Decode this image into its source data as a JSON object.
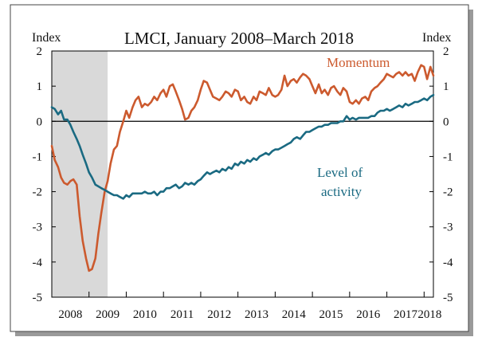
{
  "chart_data": {
    "type": "line",
    "title": "LMCI, January 2008–March 2018",
    "ylabel_left": "Index",
    "ylabel_right": "Index",
    "ylim": [
      -5,
      2
    ],
    "yticks": [
      "2",
      "1",
      "0",
      "-1",
      "-2",
      "-3",
      "-4",
      "-5"
    ],
    "xlim": [
      2008.0,
      2018.25
    ],
    "xticks": [
      "2008",
      "2009",
      "2010",
      "2011",
      "2012",
      "2013",
      "2014",
      "2015",
      "2016",
      "2017",
      "2018"
    ],
    "recession_shading": {
      "from": 2008.0,
      "to": 2009.5
    },
    "zero_line": true,
    "grid": false,
    "series": [
      {
        "name": "Momentum",
        "label_line1": "Momentum",
        "color": "#cc5a2e",
        "points": [
          [
            2008.0,
            -0.7
          ],
          [
            2008.08,
            -1.1
          ],
          [
            2008.17,
            -1.3
          ],
          [
            2008.25,
            -1.6
          ],
          [
            2008.33,
            -1.75
          ],
          [
            2008.42,
            -1.8
          ],
          [
            2008.5,
            -1.7
          ],
          [
            2008.58,
            -1.65
          ],
          [
            2008.67,
            -1.8
          ],
          [
            2008.75,
            -2.7
          ],
          [
            2008.83,
            -3.4
          ],
          [
            2008.92,
            -3.9
          ],
          [
            2009.0,
            -4.25
          ],
          [
            2009.08,
            -4.2
          ],
          [
            2009.17,
            -3.9
          ],
          [
            2009.25,
            -3.2
          ],
          [
            2009.33,
            -2.6
          ],
          [
            2009.42,
            -2.0
          ],
          [
            2009.5,
            -1.7
          ],
          [
            2009.58,
            -1.2
          ],
          [
            2009.67,
            -0.8
          ],
          [
            2009.75,
            -0.7
          ],
          [
            2009.83,
            -0.3
          ],
          [
            2009.92,
            0.0
          ],
          [
            2010.0,
            0.3
          ],
          [
            2010.08,
            0.1
          ],
          [
            2010.17,
            0.4
          ],
          [
            2010.25,
            0.6
          ],
          [
            2010.33,
            0.7
          ],
          [
            2010.42,
            0.4
          ],
          [
            2010.5,
            0.5
          ],
          [
            2010.58,
            0.45
          ],
          [
            2010.67,
            0.55
          ],
          [
            2010.75,
            0.7
          ],
          [
            2010.83,
            0.6
          ],
          [
            2010.92,
            0.8
          ],
          [
            2011.0,
            0.9
          ],
          [
            2011.08,
            0.7
          ],
          [
            2011.17,
            1.0
          ],
          [
            2011.25,
            1.05
          ],
          [
            2011.33,
            0.85
          ],
          [
            2011.42,
            0.6
          ],
          [
            2011.5,
            0.35
          ],
          [
            2011.58,
            0.05
          ],
          [
            2011.67,
            0.1
          ],
          [
            2011.75,
            0.3
          ],
          [
            2011.83,
            0.4
          ],
          [
            2011.92,
            0.6
          ],
          [
            2012.0,
            0.9
          ],
          [
            2012.08,
            1.15
          ],
          [
            2012.17,
            1.1
          ],
          [
            2012.25,
            0.9
          ],
          [
            2012.33,
            0.7
          ],
          [
            2012.42,
            0.65
          ],
          [
            2012.5,
            0.6
          ],
          [
            2012.58,
            0.7
          ],
          [
            2012.67,
            0.85
          ],
          [
            2012.75,
            0.8
          ],
          [
            2012.83,
            0.7
          ],
          [
            2012.92,
            0.9
          ],
          [
            2013.0,
            0.85
          ],
          [
            2013.08,
            0.6
          ],
          [
            2013.17,
            0.7
          ],
          [
            2013.25,
            0.55
          ],
          [
            2013.33,
            0.5
          ],
          [
            2013.42,
            0.7
          ],
          [
            2013.5,
            0.6
          ],
          [
            2013.58,
            0.85
          ],
          [
            2013.67,
            0.8
          ],
          [
            2013.75,
            0.75
          ],
          [
            2013.83,
            0.95
          ],
          [
            2013.92,
            0.75
          ],
          [
            2014.0,
            0.7
          ],
          [
            2014.08,
            0.75
          ],
          [
            2014.17,
            0.9
          ],
          [
            2014.25,
            1.3
          ],
          [
            2014.33,
            1.0
          ],
          [
            2014.42,
            1.15
          ],
          [
            2014.5,
            1.2
          ],
          [
            2014.58,
            1.1
          ],
          [
            2014.67,
            1.25
          ],
          [
            2014.75,
            1.35
          ],
          [
            2014.83,
            1.3
          ],
          [
            2014.92,
            1.2
          ],
          [
            2015.0,
            1.0
          ],
          [
            2015.08,
            0.8
          ],
          [
            2015.17,
            1.05
          ],
          [
            2015.25,
            0.8
          ],
          [
            2015.33,
            0.9
          ],
          [
            2015.42,
            0.75
          ],
          [
            2015.5,
            0.95
          ],
          [
            2015.58,
            1.0
          ],
          [
            2015.67,
            0.85
          ],
          [
            2015.75,
            0.75
          ],
          [
            2015.83,
            0.95
          ],
          [
            2015.92,
            0.85
          ],
          [
            2016.0,
            0.55
          ],
          [
            2016.08,
            0.5
          ],
          [
            2016.17,
            0.6
          ],
          [
            2016.25,
            0.5
          ],
          [
            2016.33,
            0.65
          ],
          [
            2016.42,
            0.7
          ],
          [
            2016.5,
            0.6
          ],
          [
            2016.58,
            0.85
          ],
          [
            2016.67,
            0.95
          ],
          [
            2016.75,
            1.0
          ],
          [
            2016.83,
            1.1
          ],
          [
            2016.92,
            1.2
          ],
          [
            2017.0,
            1.35
          ],
          [
            2017.08,
            1.3
          ],
          [
            2017.17,
            1.25
          ],
          [
            2017.25,
            1.35
          ],
          [
            2017.33,
            1.4
          ],
          [
            2017.42,
            1.3
          ],
          [
            2017.5,
            1.4
          ],
          [
            2017.58,
            1.3
          ],
          [
            2017.67,
            1.35
          ],
          [
            2017.75,
            1.15
          ],
          [
            2017.83,
            1.4
          ],
          [
            2017.92,
            1.6
          ],
          [
            2018.0,
            1.55
          ],
          [
            2018.08,
            1.2
          ],
          [
            2018.17,
            1.55
          ],
          [
            2018.25,
            1.3
          ]
        ]
      },
      {
        "name": "Level of activity",
        "label_line1": "Level of",
        "label_line2": "activity",
        "color": "#1a6a82",
        "points": [
          [
            2008.0,
            0.4
          ],
          [
            2008.08,
            0.35
          ],
          [
            2008.17,
            0.2
          ],
          [
            2008.25,
            0.3
          ],
          [
            2008.33,
            0.05
          ],
          [
            2008.42,
            0.05
          ],
          [
            2008.5,
            -0.1
          ],
          [
            2008.58,
            -0.3
          ],
          [
            2008.67,
            -0.5
          ],
          [
            2008.75,
            -0.7
          ],
          [
            2008.83,
            -0.95
          ],
          [
            2008.92,
            -1.2
          ],
          [
            2009.0,
            -1.45
          ],
          [
            2009.08,
            -1.6
          ],
          [
            2009.17,
            -1.8
          ],
          [
            2009.25,
            -1.85
          ],
          [
            2009.33,
            -1.9
          ],
          [
            2009.42,
            -1.95
          ],
          [
            2009.5,
            -2.0
          ],
          [
            2009.58,
            -2.05
          ],
          [
            2009.67,
            -2.1
          ],
          [
            2009.75,
            -2.1
          ],
          [
            2009.83,
            -2.15
          ],
          [
            2009.92,
            -2.2
          ],
          [
            2010.0,
            -2.1
          ],
          [
            2010.08,
            -2.15
          ],
          [
            2010.17,
            -2.05
          ],
          [
            2010.25,
            -2.05
          ],
          [
            2010.33,
            -2.05
          ],
          [
            2010.42,
            -2.05
          ],
          [
            2010.5,
            -2.0
          ],
          [
            2010.58,
            -2.05
          ],
          [
            2010.67,
            -2.05
          ],
          [
            2010.75,
            -2.0
          ],
          [
            2010.83,
            -2.1
          ],
          [
            2010.92,
            -2.0
          ],
          [
            2011.0,
            -2.0
          ],
          [
            2011.08,
            -1.9
          ],
          [
            2011.17,
            -1.9
          ],
          [
            2011.25,
            -1.85
          ],
          [
            2011.33,
            -1.8
          ],
          [
            2011.42,
            -1.9
          ],
          [
            2011.5,
            -1.85
          ],
          [
            2011.58,
            -1.75
          ],
          [
            2011.67,
            -1.8
          ],
          [
            2011.75,
            -1.75
          ],
          [
            2011.83,
            -1.8
          ],
          [
            2011.92,
            -1.7
          ],
          [
            2012.0,
            -1.65
          ],
          [
            2012.08,
            -1.55
          ],
          [
            2012.17,
            -1.45
          ],
          [
            2012.25,
            -1.5
          ],
          [
            2012.33,
            -1.45
          ],
          [
            2012.42,
            -1.4
          ],
          [
            2012.5,
            -1.45
          ],
          [
            2012.58,
            -1.35
          ],
          [
            2012.67,
            -1.4
          ],
          [
            2012.75,
            -1.3
          ],
          [
            2012.83,
            -1.35
          ],
          [
            2012.92,
            -1.2
          ],
          [
            2013.0,
            -1.25
          ],
          [
            2013.08,
            -1.15
          ],
          [
            2013.17,
            -1.2
          ],
          [
            2013.25,
            -1.1
          ],
          [
            2013.33,
            -1.15
          ],
          [
            2013.42,
            -1.05
          ],
          [
            2013.5,
            -1.1
          ],
          [
            2013.58,
            -1.0
          ],
          [
            2013.67,
            -0.95
          ],
          [
            2013.75,
            -0.9
          ],
          [
            2013.83,
            -0.95
          ],
          [
            2013.92,
            -0.85
          ],
          [
            2014.0,
            -0.8
          ],
          [
            2014.08,
            -0.8
          ],
          [
            2014.17,
            -0.75
          ],
          [
            2014.25,
            -0.7
          ],
          [
            2014.33,
            -0.65
          ],
          [
            2014.42,
            -0.6
          ],
          [
            2014.5,
            -0.5
          ],
          [
            2014.58,
            -0.45
          ],
          [
            2014.67,
            -0.5
          ],
          [
            2014.75,
            -0.4
          ],
          [
            2014.83,
            -0.3
          ],
          [
            2014.92,
            -0.3
          ],
          [
            2015.0,
            -0.25
          ],
          [
            2015.08,
            -0.2
          ],
          [
            2015.17,
            -0.15
          ],
          [
            2015.25,
            -0.15
          ],
          [
            2015.33,
            -0.1
          ],
          [
            2015.42,
            -0.1
          ],
          [
            2015.5,
            -0.05
          ],
          [
            2015.58,
            -0.05
          ],
          [
            2015.67,
            -0.05
          ],
          [
            2015.75,
            0.0
          ],
          [
            2015.83,
            0.0
          ],
          [
            2015.92,
            0.15
          ],
          [
            2016.0,
            0.05
          ],
          [
            2016.08,
            0.1
          ],
          [
            2016.17,
            0.05
          ],
          [
            2016.25,
            0.1
          ],
          [
            2016.33,
            0.1
          ],
          [
            2016.42,
            0.1
          ],
          [
            2016.5,
            0.1
          ],
          [
            2016.58,
            0.15
          ],
          [
            2016.67,
            0.15
          ],
          [
            2016.75,
            0.25
          ],
          [
            2016.83,
            0.3
          ],
          [
            2016.92,
            0.3
          ],
          [
            2017.0,
            0.35
          ],
          [
            2017.08,
            0.3
          ],
          [
            2017.17,
            0.35
          ],
          [
            2017.25,
            0.4
          ],
          [
            2017.33,
            0.45
          ],
          [
            2017.42,
            0.4
          ],
          [
            2017.5,
            0.5
          ],
          [
            2017.58,
            0.45
          ],
          [
            2017.67,
            0.5
          ],
          [
            2017.75,
            0.55
          ],
          [
            2017.83,
            0.55
          ],
          [
            2017.92,
            0.6
          ],
          [
            2018.0,
            0.65
          ],
          [
            2018.08,
            0.6
          ],
          [
            2018.17,
            0.7
          ],
          [
            2018.25,
            0.75
          ]
        ]
      }
    ]
  }
}
